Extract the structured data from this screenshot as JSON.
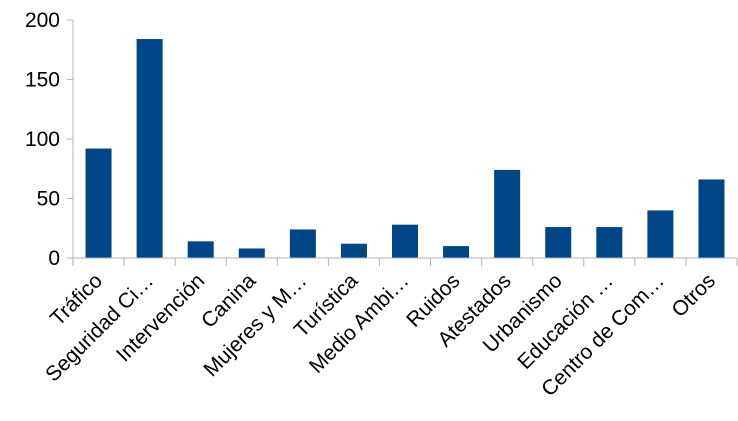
{
  "chart_data": {
    "type": "bar",
    "title": "",
    "xlabel": "",
    "ylabel": "",
    "categories": [
      "Tráfico",
      "Seguridad Ci…",
      "Intervención",
      "Canina",
      "Mujeres y M…",
      "Turística",
      "Medio Ambi…",
      "Ruidos",
      "Atestados",
      "Urbanismo",
      "Educación …",
      "Centro de Com…",
      "Otros"
    ],
    "values": [
      92,
      184,
      14,
      8,
      24,
      12,
      28,
      10,
      74,
      26,
      26,
      40,
      66
    ],
    "ylim": [
      0,
      200
    ],
    "yticks": [
      0,
      50,
      100,
      150,
      200
    ],
    "grid": false,
    "legend": "none",
    "bar_color": "#004586"
  }
}
